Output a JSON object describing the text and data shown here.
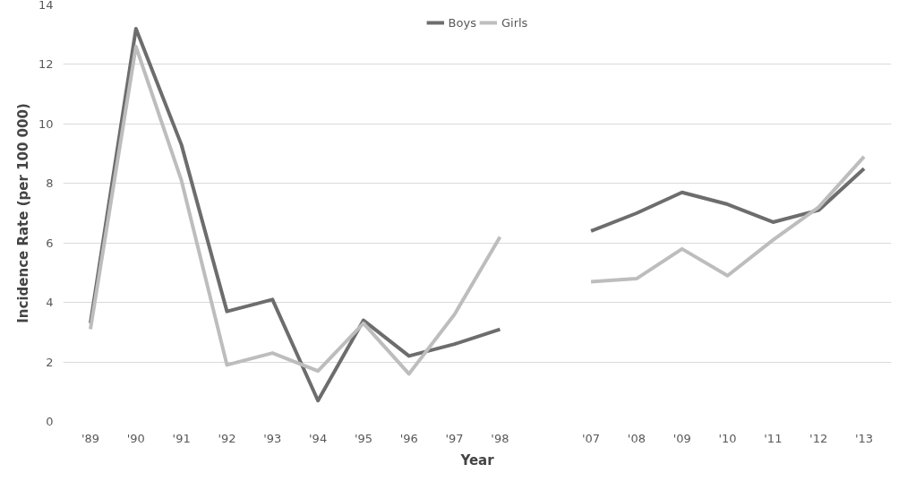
{
  "chart_data": {
    "type": "line",
    "xlabel": "Year",
    "ylabel": "Incidence Rate (per 100 000)",
    "categories": [
      "'89",
      "'90",
      "'91",
      "'92",
      "'93",
      "'94",
      "'95",
      "'96",
      "'97",
      "'98",
      null,
      "'07",
      "'08",
      "'09",
      "'10",
      "'11",
      "'12",
      "'13"
    ],
    "series": [
      {
        "name": "Boys",
        "color": "#6d6d6d",
        "values": [
          3.3,
          13.2,
          9.3,
          3.7,
          4.1,
          0.7,
          3.4,
          2.2,
          2.6,
          3.1,
          null,
          6.4,
          7.0,
          7.7,
          7.3,
          6.7,
          7.1,
          8.5
        ]
      },
      {
        "name": "Girls",
        "color": "#bdbdbd",
        "values": [
          3.1,
          12.6,
          8.1,
          1.9,
          2.3,
          1.7,
          3.3,
          1.6,
          3.6,
          6.2,
          null,
          4.7,
          4.8,
          5.8,
          4.9,
          6.1,
          7.2,
          8.9
        ]
      }
    ],
    "ylim": [
      0,
      14
    ],
    "yticks": [
      0,
      2,
      4,
      6,
      8,
      10,
      12,
      14
    ],
    "grid": "y",
    "legend": "top",
    "marker": "none",
    "line_style": "solid"
  }
}
